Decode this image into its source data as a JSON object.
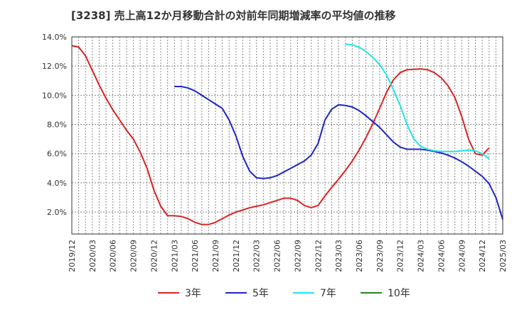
{
  "chart_data": {
    "type": "line",
    "title": "[3238]  売上高12か月移動合計の対前年同期増減率の平均値の推移",
    "xlabel": "",
    "ylabel": "",
    "ylim": [
      0.5,
      14.0
    ],
    "y_ticks": [
      "2.0%",
      "4.0%",
      "6.0%",
      "8.0%",
      "10.0%",
      "12.0%",
      "14.0%"
    ],
    "y_tick_values": [
      2.0,
      4.0,
      6.0,
      8.0,
      10.0,
      12.0,
      14.0
    ],
    "x_ticks": [
      "2019/12",
      "2020/03",
      "2020/06",
      "2020/09",
      "2020/12",
      "2021/03",
      "2021/06",
      "2021/09",
      "2021/12",
      "2022/03",
      "2022/06",
      "2022/09",
      "2022/12",
      "2023/03",
      "2023/06",
      "2023/09",
      "2023/12",
      "2024/03",
      "2024/06",
      "2024/09",
      "2024/12",
      "2025/03"
    ],
    "x_range_months": [
      0,
      63
    ],
    "grid": true,
    "legend_position": "bottom",
    "series": [
      {
        "name": "3年",
        "color": "#dd2222",
        "start_month": 0,
        "values": [
          13.4,
          13.3,
          12.7,
          11.7,
          10.7,
          9.8,
          9.0,
          8.3,
          7.6,
          7.0,
          6.1,
          5.0,
          3.5,
          2.4,
          1.75,
          1.75,
          1.7,
          1.55,
          1.3,
          1.15,
          1.15,
          1.3,
          1.55,
          1.8,
          2.0,
          2.15,
          2.3,
          2.4,
          2.5,
          2.65,
          2.8,
          2.95,
          2.95,
          2.8,
          2.45,
          2.3,
          2.45,
          3.1,
          3.7,
          4.25,
          4.85,
          5.5,
          6.25,
          7.1,
          8.05,
          9.1,
          10.2,
          11.05,
          11.55,
          11.75,
          11.78,
          11.8,
          11.75,
          11.55,
          11.2,
          10.65,
          9.85,
          8.55,
          7.0,
          6.0,
          5.9,
          6.4
        ]
      },
      {
        "name": "5年",
        "color": "#1f24c7",
        "start_month": 15,
        "values": [
          10.6,
          10.6,
          10.5,
          10.3,
          10.0,
          9.7,
          9.4,
          9.1,
          8.3,
          7.2,
          5.8,
          4.8,
          4.35,
          4.3,
          4.35,
          4.5,
          4.75,
          5.0,
          5.25,
          5.5,
          5.9,
          6.7,
          8.3,
          9.05,
          9.35,
          9.3,
          9.2,
          8.95,
          8.6,
          8.2,
          7.8,
          7.3,
          6.8,
          6.45,
          6.3,
          6.3,
          6.3,
          6.25,
          6.15,
          6.05,
          5.9,
          5.7,
          5.45,
          5.15,
          4.8,
          4.45,
          3.95,
          3.0,
          1.5
        ]
      },
      {
        "name": "7年",
        "color": "#22e3e8",
        "start_month": 40,
        "values": [
          13.5,
          13.45,
          13.3,
          13.0,
          12.6,
          12.1,
          11.4,
          10.4,
          9.3,
          8.0,
          7.0,
          6.5,
          6.3,
          6.2,
          6.15,
          6.15,
          6.15,
          6.2,
          6.25,
          6.2,
          6.0,
          5.65
        ]
      },
      {
        "name": "10年",
        "color": "#228b22",
        "start_month": 0,
        "values": []
      }
    ]
  }
}
